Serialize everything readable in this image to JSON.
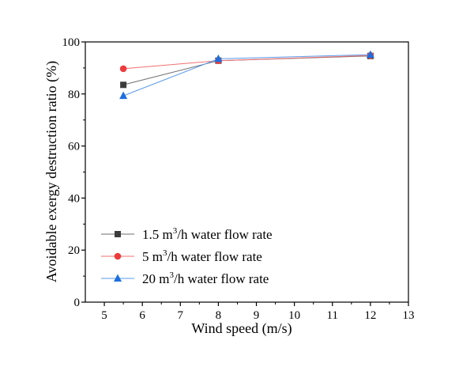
{
  "chart_data": {
    "type": "line",
    "title": "",
    "xlabel": "Wind speed (m/s)",
    "ylabel": "Avoidable exergy destruction ratio (%)",
    "xlim": [
      4.5,
      13
    ],
    "ylim": [
      0,
      100
    ],
    "xticks": [
      5,
      6,
      7,
      8,
      9,
      10,
      11,
      12,
      13
    ],
    "yticks": [
      0,
      20,
      40,
      60,
      80,
      100
    ],
    "grid": false,
    "legend_position": "bottom-left",
    "series": [
      {
        "name": "1.5 m3/h water flow rate",
        "legend_prefix": "1.5 m",
        "legend_sup": "3",
        "legend_suffix": "/h water flow rate",
        "marker": "square",
        "marker_color": "#3c3c3c",
        "line_color": "#6e6e6e",
        "x": [
          5.5,
          8,
          12
        ],
        "y": [
          83.5,
          92.8,
          94.6
        ]
      },
      {
        "name": "5 m3/h water flow rate",
        "legend_prefix": "5 m",
        "legend_sup": "3",
        "legend_suffix": "/h water flow rate",
        "marker": "circle",
        "marker_color": "#ee3b3b",
        "line_color": "#f07070",
        "x": [
          5.5,
          8,
          12
        ],
        "y": [
          89.7,
          92.8,
          94.8
        ]
      },
      {
        "name": "20 m3/h water flow rate",
        "legend_prefix": "20 m",
        "legend_sup": "3",
        "legend_suffix": "/h water flow rate",
        "marker": "triangle",
        "marker_color": "#1c6fe0",
        "line_color": "#5a9be8",
        "x": [
          5.5,
          8,
          12
        ],
        "y": [
          79.3,
          93.5,
          95.1
        ]
      }
    ]
  }
}
